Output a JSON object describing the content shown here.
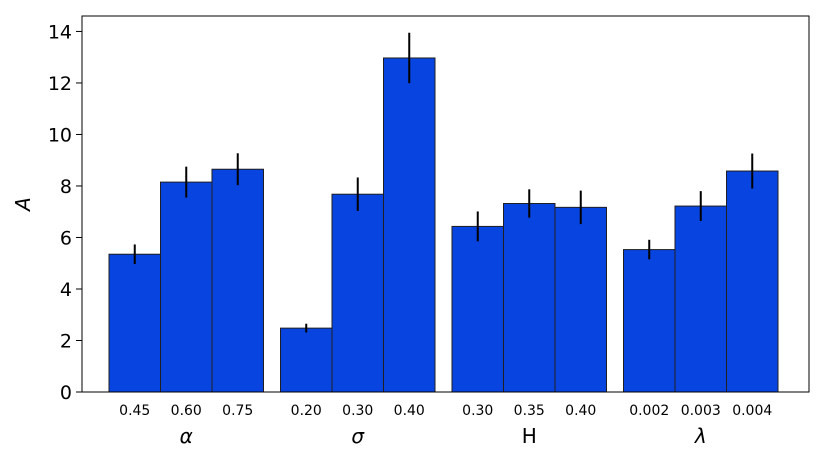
{
  "chart_data": {
    "type": "bar",
    "ylabel": "A",
    "ylim": [
      0,
      14.6
    ],
    "yticks": [
      "0",
      "2",
      "4",
      "6",
      "8",
      "10",
      "12",
      "14"
    ],
    "grid": false,
    "bar_color": "#0844e0",
    "groups": [
      {
        "label": "α",
        "italic": true,
        "bars": [
          {
            "category": "0.45",
            "value": 5.35,
            "error": 0.38
          },
          {
            "category": "0.60",
            "value": 8.15,
            "error": 0.6
          },
          {
            "category": "0.75",
            "value": 8.65,
            "error": 0.62
          }
        ]
      },
      {
        "label": "σ",
        "italic": true,
        "bars": [
          {
            "category": "0.20",
            "value": 2.48,
            "error": 0.17
          },
          {
            "category": "0.30",
            "value": 7.68,
            "error": 0.65
          },
          {
            "category": "0.40",
            "value": 12.97,
            "error": 0.98
          }
        ]
      },
      {
        "label": "H",
        "italic": false,
        "bars": [
          {
            "category": "0.30",
            "value": 6.43,
            "error": 0.58
          },
          {
            "category": "0.35",
            "value": 7.32,
            "error": 0.55
          },
          {
            "category": "0.40",
            "value": 7.17,
            "error": 0.65
          }
        ]
      },
      {
        "label": "λ",
        "italic": true,
        "bars": [
          {
            "category": "0.002",
            "value": 5.53,
            "error": 0.38
          },
          {
            "category": "0.003",
            "value": 7.22,
            "error": 0.58
          },
          {
            "category": "0.004",
            "value": 8.58,
            "error": 0.68
          }
        ]
      }
    ]
  }
}
